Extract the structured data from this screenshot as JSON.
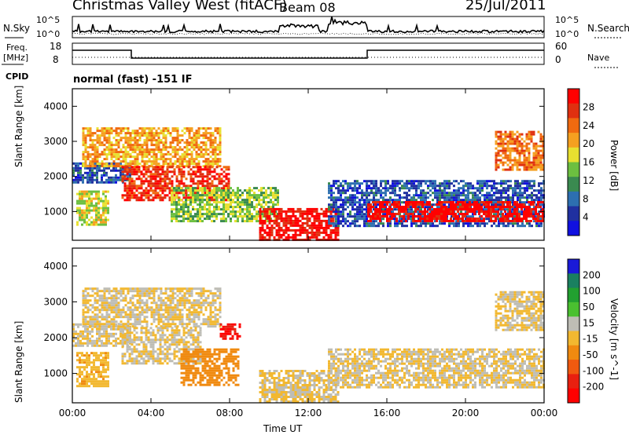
{
  "header": {
    "title": "Christmas Valley West (fitACF)",
    "beam": "Beam 08",
    "date": "25/Jul/2011"
  },
  "status_panel": {
    "nsky_label": "N.Sky",
    "nsearch_label": "N.Search",
    "noise_ticks_left": [
      "10^5",
      "10^0"
    ],
    "noise_ticks_right": [
      "10^5",
      "10^0"
    ],
    "freq_label_1": "Freq.",
    "freq_label_2": "[MHz]",
    "freq_ticks": [
      "18",
      "8"
    ],
    "nave_label": "Nave",
    "nave_ticks": [
      "60",
      "0"
    ],
    "cpid_label": "CPID",
    "cpid_text": "normal (fast) -151 IF"
  },
  "colors": {
    "power": [
      "#1010e0",
      "#2030a0",
      "#2d6fb0",
      "#3a8a50",
      "#6cbf40",
      "#e8e030",
      "#f5a020",
      "#f06a10",
      "#e03010",
      "#ff0000"
    ],
    "velocity": [
      "#1a1ad8",
      "#1a8060",
      "#22a030",
      "#4ac030",
      "#bebdb5",
      "#f2b830",
      "#f08a10",
      "#f05a10",
      "#e82010",
      "#ff0000"
    ]
  },
  "chart_data": [
    {
      "type": "heatmap",
      "title": "",
      "ylabel": "Slant Range [km]",
      "xlabel": "Time UT",
      "x_ticks": [
        "00:00",
        "04:00",
        "08:00",
        "12:00",
        "16:00",
        "20:00",
        "00:00"
      ],
      "xlim_hours": [
        0,
        24
      ],
      "y_ticks": [
        1000,
        2000,
        3000,
        4000
      ],
      "ylim": [
        180,
        4500
      ],
      "colorbar": {
        "label": "Power [dB]",
        "ticks": [
          "4",
          "8",
          "12",
          "16",
          "20",
          "24",
          "28"
        ],
        "range": [
          0,
          30
        ]
      },
      "echo_regions": [
        {
          "t": [
            0.0,
            3.0
          ],
          "r": [
            1800,
            2400
          ],
          "value": 6
        },
        {
          "t": [
            0.2,
            1.8
          ],
          "r": [
            650,
            1600
          ],
          "value": 16
        },
        {
          "t": [
            0.5,
            7.5
          ],
          "r": [
            2300,
            3400
          ],
          "value": 20
        },
        {
          "t": [
            2.5,
            8.0
          ],
          "r": [
            1300,
            2300
          ],
          "value": 26
        },
        {
          "t": [
            5.0,
            10.5
          ],
          "r": [
            700,
            1700
          ],
          "value": 14
        },
        {
          "t": [
            9.5,
            13.5
          ],
          "r": [
            200,
            1100
          ],
          "value": 28
        },
        {
          "t": [
            13.0,
            24.0
          ],
          "r": [
            600,
            1900
          ],
          "value": 6
        },
        {
          "t": [
            15.0,
            24.0
          ],
          "r": [
            700,
            1300
          ],
          "value": 29
        },
        {
          "t": [
            21.5,
            24.0
          ],
          "r": [
            2200,
            3300
          ],
          "value": 22
        }
      ]
    },
    {
      "type": "heatmap",
      "title": "",
      "ylabel": "Slant Range [km]",
      "xlabel": "Time UT",
      "x_ticks": [
        "00:00",
        "04:00",
        "08:00",
        "12:00",
        "16:00",
        "20:00",
        "00:00"
      ],
      "xlim_hours": [
        0,
        24
      ],
      "y_ticks": [
        1000,
        2000,
        3000,
        4000
      ],
      "ylim": [
        180,
        4500
      ],
      "colorbar": {
        "label": "Velocity [m s^-1]",
        "ticks": [
          "200",
          "100",
          "50",
          "15",
          "-15",
          "-50",
          "-100",
          "-200"
        ],
        "range": [
          -250,
          250
        ]
      },
      "echo_regions": [
        {
          "t": [
            0.0,
            3.0
          ],
          "r": [
            1800,
            2400
          ],
          "value": 0
        },
        {
          "t": [
            0.5,
            7.5
          ],
          "r": [
            2300,
            3400
          ],
          "value": 0
        },
        {
          "t": [
            2.5,
            6.5
          ],
          "r": [
            1300,
            2300
          ],
          "value": 0
        },
        {
          "t": [
            5.5,
            8.5
          ],
          "r": [
            700,
            1700
          ],
          "value": -70
        },
        {
          "t": [
            0.2,
            1.8
          ],
          "r": [
            650,
            1600
          ],
          "value": -40
        },
        {
          "t": [
            9.5,
            13.5
          ],
          "r": [
            200,
            1100
          ],
          "value": 0
        },
        {
          "t": [
            13.0,
            24.0
          ],
          "r": [
            600,
            1700
          ],
          "value": 0
        },
        {
          "t": [
            7.5,
            8.5
          ],
          "r": [
            2000,
            2400
          ],
          "value": -200
        },
        {
          "t": [
            21.5,
            24.0
          ],
          "r": [
            2200,
            3300
          ],
          "value": 0
        }
      ]
    }
  ]
}
